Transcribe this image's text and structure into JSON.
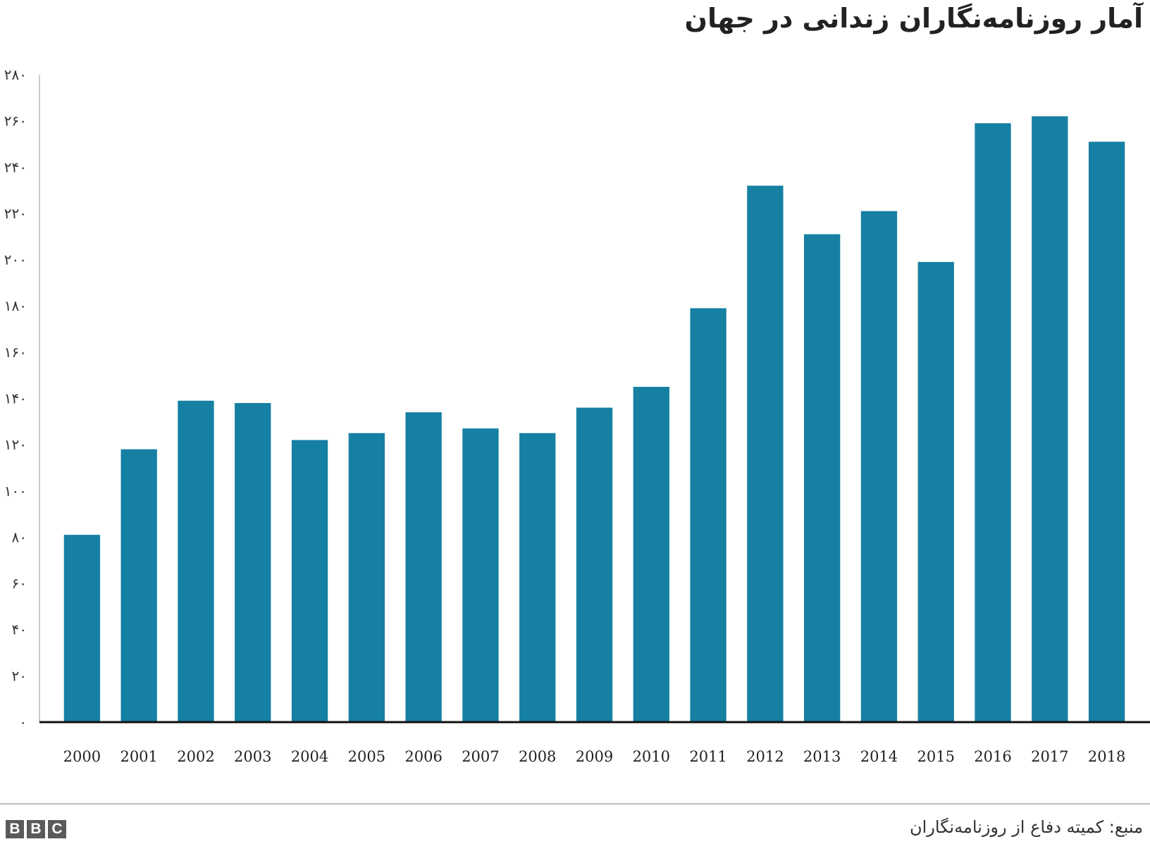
{
  "title": "آمار روزنامه‌نگاران زندانی در جهان",
  "source": "منبع: کمیته دفاع از روزنامه‌نگاران",
  "logo": {
    "letters": [
      "B",
      "B",
      "C"
    ]
  },
  "colors": {
    "bar": "#1580a3",
    "axis": "#111111"
  },
  "chart_data": {
    "type": "bar",
    "categories": [
      "2000",
      "2001",
      "2002",
      "2003",
      "2004",
      "2005",
      "2006",
      "2007",
      "2008",
      "2009",
      "2010",
      "2011",
      "2012",
      "2013",
      "2014",
      "2015",
      "2016",
      "2017",
      "2018"
    ],
    "values": [
      81,
      118,
      139,
      138,
      122,
      125,
      134,
      127,
      125,
      136,
      145,
      179,
      232,
      211,
      221,
      199,
      259,
      262,
      251
    ],
    "ylim": [
      0,
      280
    ],
    "yticks": [
      0,
      20,
      40,
      60,
      80,
      100,
      120,
      140,
      160,
      180,
      200,
      220,
      240,
      260,
      280
    ],
    "ytick_labels": [
      "۰",
      "۲۰",
      "۴۰",
      "۶۰",
      "۸۰",
      "۱۰۰",
      "۱۲۰",
      "۱۴۰",
      "۱۶۰",
      "۱۸۰",
      "۲۰۰",
      "۲۲۰",
      "۲۴۰",
      "۲۶۰",
      "۲۸۰"
    ],
    "grid": false,
    "legend": "none"
  }
}
